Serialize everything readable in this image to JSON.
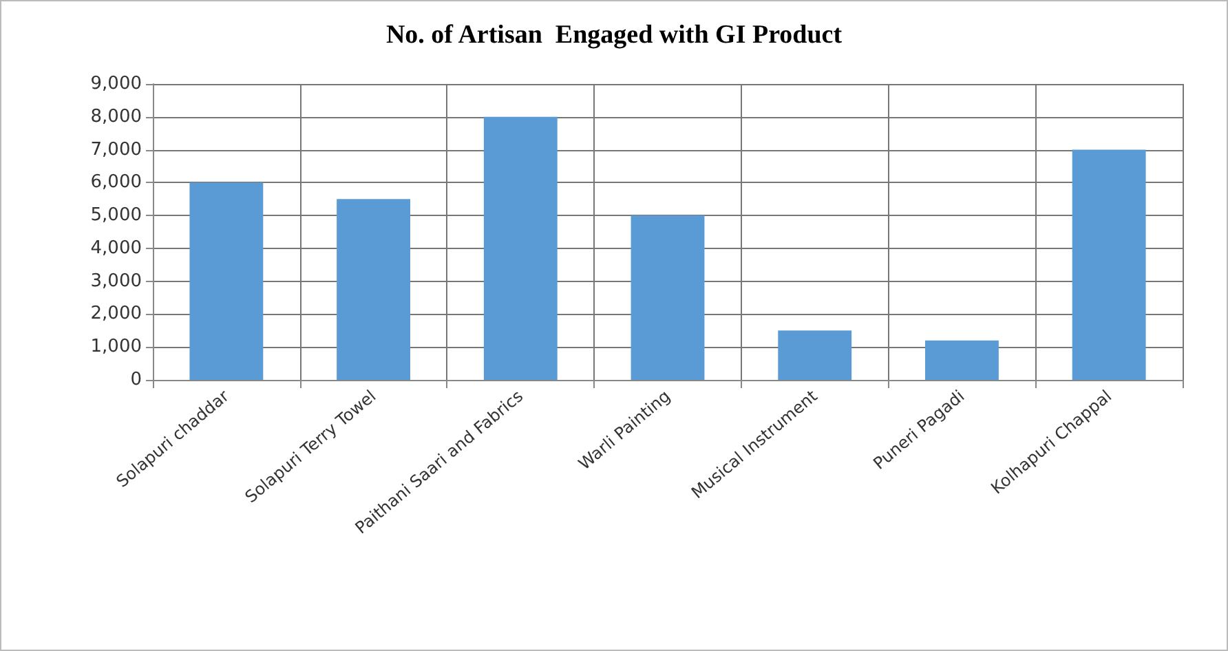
{
  "chart_data": {
    "type": "bar",
    "title": "No. of Artisan  Engaged with GI Product",
    "categories": [
      "Solapuri chaddar",
      "Solapuri Terry Towel",
      "Paithani Saari and Fabrics",
      "Warli Painting",
      "Musical Instrument",
      "Puneri Pagadi",
      "Kolhapuri Chappal"
    ],
    "values": [
      6000,
      5500,
      8000,
      5000,
      1500,
      1200,
      7000
    ],
    "color": "#5b9bd5",
    "ylim": [
      0,
      9000
    ],
    "yticks": [
      0,
      {
        "value": 1000,
        "label": "1,000"
      },
      {
        "value": 2000,
        "label": "2,000"
      },
      {
        "value": 3000,
        "label": "3,000"
      },
      {
        "value": 4000,
        "label": "4,000"
      },
      {
        "value": 5000,
        "label": "5,000"
      },
      {
        "value": 6000,
        "label": "6,000"
      },
      {
        "value": 7000,
        "label": "7,000"
      },
      {
        "value": 8000,
        "label": "8,000"
      },
      {
        "value": 9000,
        "label": "9,000"
      }
    ],
    "grid": true
  }
}
